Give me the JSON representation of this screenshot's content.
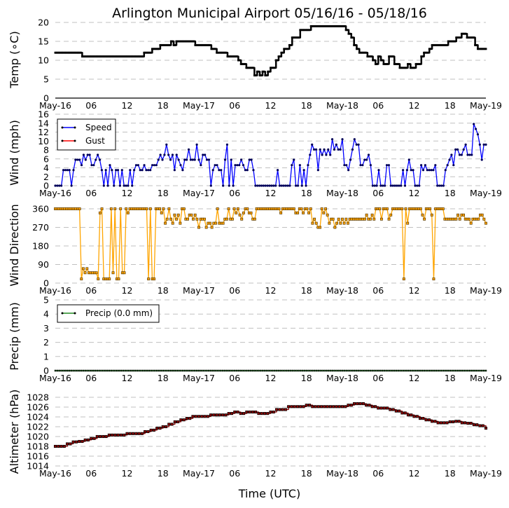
{
  "chart_data": [
    {
      "type": "line",
      "title": "Arlington Municipal Airport 05/16/16 - 05/18/16",
      "ylabel": "Temp ($^\\circ$C)",
      "ylabel_display": "Temp (∘C)",
      "xlabel": "",
      "ylim": [
        0,
        20
      ],
      "yticks": [
        0,
        5,
        10,
        15,
        20
      ],
      "grid": true,
      "x_unit": "hours since 2016-05-16 00:00 UTC, 0.5 h step",
      "series": [
        {
          "name": "Temp",
          "color": "#000000",
          "values": [
            12,
            12,
            12,
            12,
            12,
            12,
            12,
            12,
            12,
            12,
            11,
            11,
            11,
            11,
            11,
            11,
            11,
            11,
            11,
            11,
            11,
            11,
            11,
            11,
            11,
            11,
            11,
            11,
            11,
            11,
            11,
            11,
            11,
            12,
            12,
            12,
            13,
            13,
            13,
            14,
            14,
            14,
            14,
            15,
            14,
            15,
            15,
            15,
            15,
            15,
            15,
            15,
            14,
            14,
            14,
            14,
            14,
            14,
            13,
            13,
            12,
            12,
            12,
            12,
            11,
            11,
            11,
            11,
            10,
            9,
            9,
            8,
            8,
            8,
            6,
            7,
            6,
            7,
            6,
            7,
            8,
            8,
            10,
            11,
            12,
            13,
            13,
            14,
            16,
            16,
            16,
            18,
            18,
            18,
            18,
            19,
            19,
            19,
            19,
            19,
            19,
            19,
            19,
            19,
            19,
            19,
            19,
            19,
            18,
            17,
            16,
            14,
            13,
            12,
            12,
            12,
            11,
            11,
            10,
            9,
            11,
            10,
            9,
            9,
            11,
            11,
            9,
            9,
            8,
            8,
            8,
            9,
            8,
            8,
            9,
            9,
            11,
            12,
            12,
            13,
            14,
            14,
            14,
            14,
            14,
            14,
            15,
            15,
            15,
            16,
            16,
            17,
            17,
            16,
            16,
            16,
            14,
            13,
            13,
            13,
            13
          ]
        }
      ]
    },
    {
      "type": "line",
      "ylabel": "Wind (mph)",
      "ylim": [
        0,
        16
      ],
      "yticks": [
        0,
        2,
        4,
        6,
        8,
        10,
        12,
        14,
        16
      ],
      "grid": true,
      "legend": {
        "position": "top-left",
        "entries": [
          "Speed",
          "Gust"
        ]
      },
      "series": [
        {
          "name": "Speed",
          "color": "#0000ff",
          "values": [
            0,
            0,
            0,
            0,
            3.5,
            3.5,
            3.5,
            3.5,
            0,
            3.5,
            5.8,
            5.8,
            5.8,
            4.6,
            6.9,
            5.8,
            6.9,
            6.9,
            4.6,
            4.6,
            5.8,
            6.9,
            5.8,
            3.5,
            0,
            3.5,
            0,
            4.6,
            3.5,
            0,
            3.5,
            3.5,
            0,
            3.5,
            0,
            0,
            0,
            3.5,
            0,
            3.5,
            4.6,
            4.6,
            3.5,
            3.5,
            4.6,
            3.5,
            3.5,
            3.5,
            4.6,
            4.6,
            4.6,
            5.8,
            6.9,
            5.8,
            6.9,
            9.2,
            6.9,
            5.8,
            6.9,
            3.5,
            6.9,
            5.8,
            4.6,
            3.5,
            5.8,
            5.8,
            8.1,
            5.8,
            5.8,
            5.8,
            9.2,
            5.8,
            4.6,
            6.9,
            6.9,
            5.8,
            5.8,
            0,
            3.5,
            4.6,
            4.6,
            3.5,
            3.5,
            0,
            5.8,
            9.2,
            0,
            5.8,
            0,
            4.6,
            4.6,
            4.6,
            5.8,
            4.6,
            3.5,
            3.5,
            5.8,
            5.8,
            3.5,
            0,
            0,
            0,
            0,
            0,
            0,
            0,
            0,
            0,
            0,
            0,
            3.5,
            0,
            0,
            0,
            0,
            0,
            0,
            4.6,
            5.8,
            0,
            0,
            4.6,
            0,
            3.5,
            0,
            4.6,
            6.9,
            9.2,
            8.1,
            8.1,
            3.5,
            8.1,
            6.9,
            8.1,
            6.9,
            8.1,
            6.9,
            10.4,
            8.1,
            9.2,
            8.1,
            8.1,
            10.4,
            4.6,
            4.6,
            3.5,
            5.8,
            8.1,
            10.4,
            9.2,
            9.2,
            4.6,
            4.6,
            5.8,
            5.8,
            6.9,
            4.6,
            0,
            0,
            0,
            3.5,
            0,
            0,
            0,
            4.6,
            4.6,
            0,
            0,
            0,
            0,
            0,
            0,
            3.5,
            0,
            3.5,
            5.8,
            3.5,
            3.5,
            0,
            0,
            0,
            4.6,
            3.5,
            4.6,
            3.5,
            3.5,
            3.5,
            3.5,
            4.6,
            0,
            0,
            0,
            0,
            3.5,
            4.6,
            5.8,
            6.9,
            4.6,
            8.1,
            8.1,
            6.9,
            6.9,
            8.1,
            9.2,
            6.9,
            6.9,
            6.9,
            13.8,
            12.7,
            11.5,
            9.2,
            5.8,
            9.2,
            9.2
          ]
        },
        {
          "name": "Gust",
          "color": "#ff0000",
          "values": []
        }
      ]
    },
    {
      "type": "line",
      "ylabel": "Wind Direction",
      "ylim": [
        0,
        360
      ],
      "yticks": [
        0,
        90,
        180,
        270,
        360
      ],
      "grid": true,
      "series": [
        {
          "name": "Direction",
          "color": "#ffa500",
          "values": [
            360,
            360,
            360,
            360,
            360,
            360,
            360,
            360,
            360,
            360,
            360,
            360,
            360,
            360,
            20,
            70,
            50,
            70,
            50,
            50,
            50,
            50,
            50,
            20,
            340,
            360,
            20,
            20,
            20,
            20,
            360,
            50,
            360,
            20,
            20,
            360,
            50,
            50,
            360,
            340,
            360,
            360,
            360,
            360,
            360,
            360,
            360,
            360,
            360,
            360,
            20,
            360,
            20,
            20,
            360,
            360,
            360,
            340,
            360,
            290,
            310,
            360,
            310,
            290,
            330,
            310,
            330,
            290,
            360,
            360,
            310,
            310,
            330,
            330,
            310,
            330,
            310,
            270,
            310,
            310,
            310,
            270,
            290,
            290,
            270,
            290,
            290,
            360,
            290,
            290,
            290,
            310,
            310,
            360,
            310,
            310,
            360,
            340,
            360,
            330,
            310,
            340,
            360,
            360,
            340,
            340,
            310,
            310,
            360,
            360,
            360,
            360,
            360,
            360,
            360,
            360,
            360,
            360,
            360,
            360,
            360,
            340,
            360,
            360,
            360,
            360,
            360,
            360,
            360,
            340,
            340,
            360,
            360,
            340,
            360,
            360,
            340,
            360,
            290,
            310,
            290,
            270,
            270,
            360,
            340,
            360,
            330,
            290,
            310,
            310,
            270,
            290,
            310,
            290,
            310,
            290,
            310,
            290,
            310,
            310,
            310,
            310,
            310,
            310,
            310,
            310,
            310,
            330,
            310,
            310,
            330,
            310,
            360,
            360,
            360,
            310,
            360,
            360,
            360,
            310,
            330,
            360,
            360,
            360,
            360,
            360,
            360,
            20,
            360,
            290,
            360,
            360,
            360,
            360,
            360,
            360,
            360,
            330,
            310,
            360,
            360,
            360,
            330,
            20,
            360,
            360,
            360,
            360,
            360,
            310,
            310,
            310,
            310,
            310,
            310,
            310,
            330,
            310,
            330,
            330,
            310,
            310,
            310,
            290,
            310,
            310,
            310,
            310,
            330,
            330,
            310,
            290
          ]
        }
      ]
    },
    {
      "type": "line",
      "ylabel": "Precip (mm)",
      "ylim": [
        0,
        5
      ],
      "yticks": [
        0,
        1,
        2,
        3,
        4,
        5
      ],
      "grid": true,
      "legend": {
        "position": "top-left",
        "entries": [
          "Precip (0.0 mm)"
        ]
      },
      "series": [
        {
          "name": "Precip (0.0 mm)",
          "color": "#228b22",
          "constant": 0.0
        }
      ]
    },
    {
      "type": "line",
      "ylabel": "Altimeter (hPa)",
      "xlabel": "Time (UTC)",
      "ylim": [
        1013,
        1029
      ],
      "yticks": [
        1014,
        1016,
        1018,
        1020,
        1022,
        1024,
        1026,
        1028
      ],
      "grid": true,
      "x_unit": "hours since 2016-05-16 00:00 UTC, 1 h step",
      "series": [
        {
          "name": "Altimeter",
          "color": "#8b0000",
          "values": [
            1018.0,
            1018.0,
            1018.5,
            1018.9,
            1019.0,
            1019.3,
            1019.6,
            1020.0,
            1020.0,
            1020.3,
            1020.3,
            1020.3,
            1020.6,
            1020.6,
            1020.6,
            1021.0,
            1021.3,
            1021.7,
            1022.0,
            1022.5,
            1023.0,
            1023.4,
            1023.7,
            1024.1,
            1024.1,
            1024.1,
            1024.4,
            1024.4,
            1024.4,
            1024.7,
            1025.0,
            1024.7,
            1025.0,
            1025.0,
            1024.7,
            1024.7,
            1025.0,
            1025.5,
            1025.5,
            1026.1,
            1026.1,
            1026.1,
            1026.4,
            1026.1,
            1026.1,
            1026.1,
            1026.1,
            1026.1,
            1026.1,
            1026.4,
            1026.7,
            1026.7,
            1026.4,
            1026.1,
            1025.8,
            1025.8,
            1025.5,
            1025.2,
            1024.8,
            1024.4,
            1024.1,
            1023.7,
            1023.4,
            1023.1,
            1022.8,
            1022.8,
            1023.0,
            1023.1,
            1022.8,
            1022.7,
            1022.4,
            1022.2,
            1021.7
          ]
        }
      ]
    }
  ],
  "x_axis": {
    "range_hours": [
      0,
      72
    ],
    "tick_hours": [
      0,
      6,
      12,
      18,
      24,
      30,
      36,
      42,
      48,
      54,
      60,
      66,
      72
    ],
    "tick_labels": [
      "May-16",
      "06",
      "12",
      "18",
      "May-17",
      "06",
      "12",
      "18",
      "May-18",
      "06",
      "12",
      "18",
      "May-19"
    ]
  }
}
